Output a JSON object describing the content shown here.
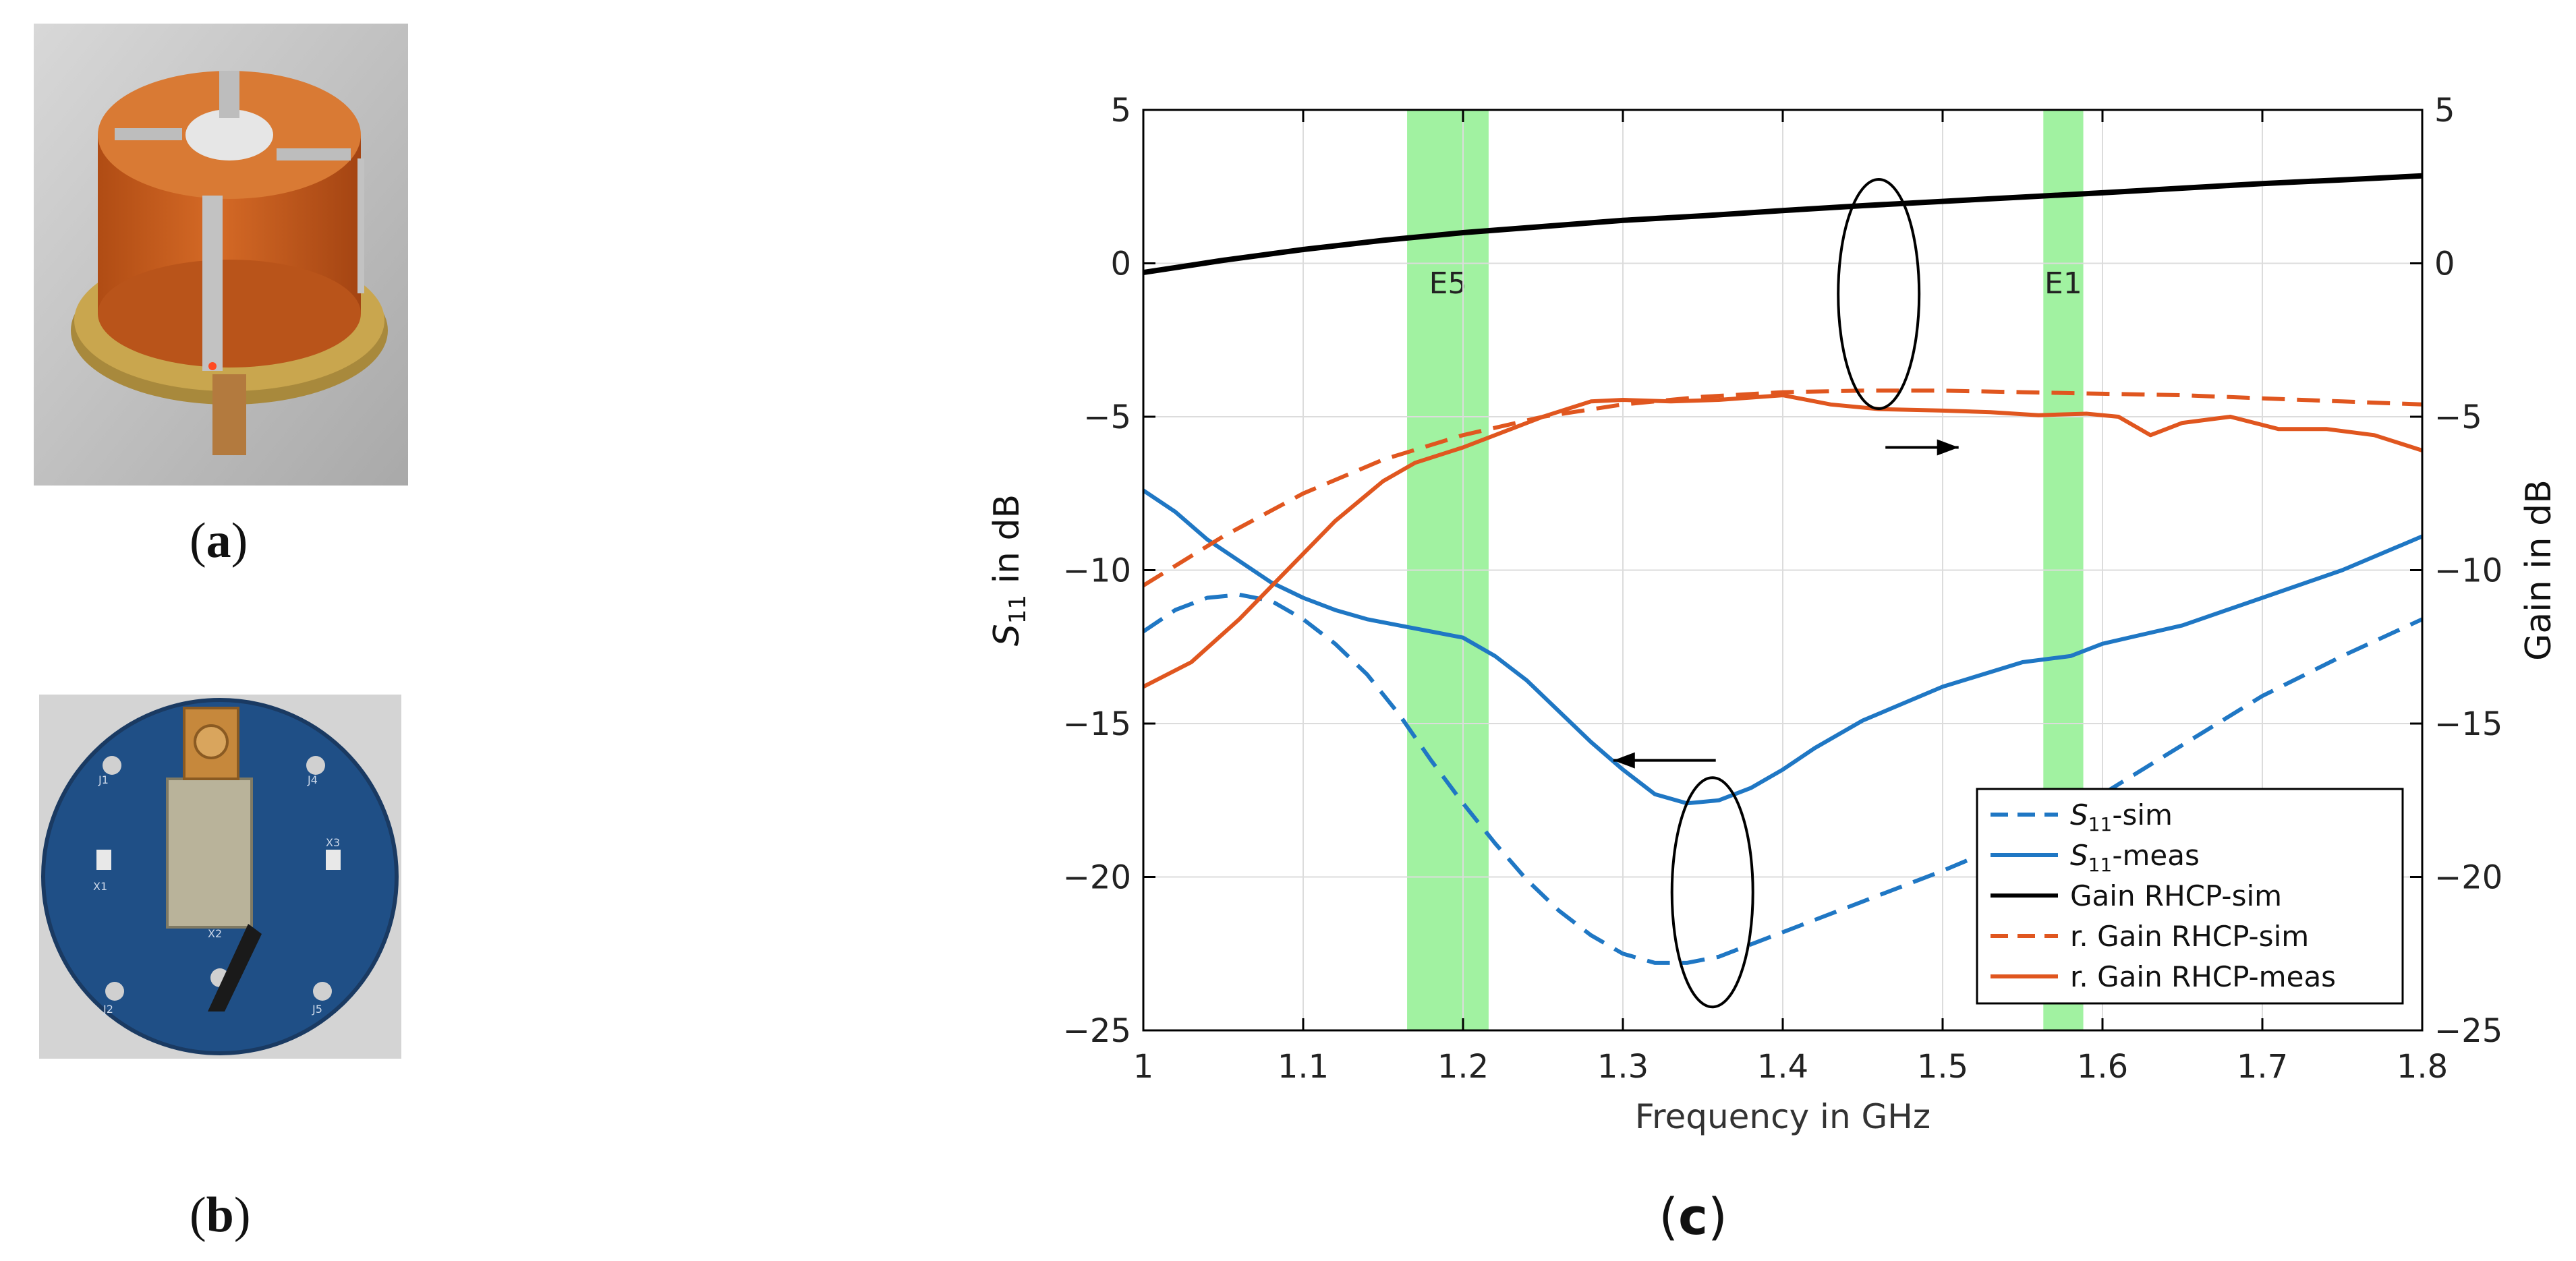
{
  "panels": {
    "a": {
      "caption_letter": "a",
      "description": "antenna-photo"
    },
    "b": {
      "caption_letter": "b",
      "description": "feed-network-pcb-photo"
    },
    "c": {
      "caption_letter": "c"
    }
  },
  "pcb_labels": {
    "j1": "J1",
    "j2": "J2",
    "j4": "J4",
    "j5": "J5",
    "x1": "X1",
    "x2": "X2",
    "x3": "X3"
  },
  "colors": {
    "blue": "#1f77c4",
    "orange": "#e0561f",
    "black": "#000000",
    "band": "#90f090",
    "copper": "#c8601e",
    "pcb": "#1f4f86"
  },
  "chart_data": {
    "type": "line",
    "xlabel": "Frequency in GHz",
    "ylabel_left": "S11 in dB",
    "ylabel_left_main": "S",
    "ylabel_left_sub": "11",
    "ylabel_left_rest": " in dB",
    "ylabel_right": "Gain in dB",
    "xlim": [
      1.0,
      1.8
    ],
    "ylim": [
      -25,
      5
    ],
    "x_ticks": [
      "1",
      "1.1",
      "1.2",
      "1.3",
      "1.4",
      "1.5",
      "1.6",
      "1.7",
      "1.8"
    ],
    "y_ticks_left": [
      "5",
      "0",
      "−5",
      "−10",
      "−15",
      "−20",
      "−25"
    ],
    "y_ticks_right": [
      "5",
      "0",
      "−5",
      "−10",
      "−15",
      "−20",
      "−25"
    ],
    "grid": true,
    "bands": [
      {
        "label": "E5",
        "from": 1.165,
        "to": 1.216
      },
      {
        "label": "E1",
        "from": 1.563,
        "to": 1.588
      }
    ],
    "series": [
      {
        "name": "S11-sim",
        "name_main": "S",
        "name_sub": "11",
        "name_rest": "-sim",
        "color": "blue",
        "dash": true,
        "x": [
          1.0,
          1.02,
          1.04,
          1.06,
          1.08,
          1.1,
          1.12,
          1.14,
          1.16,
          1.18,
          1.2,
          1.22,
          1.24,
          1.26,
          1.28,
          1.3,
          1.32,
          1.34,
          1.36,
          1.38,
          1.4,
          1.45,
          1.5,
          1.55,
          1.6,
          1.65,
          1.7,
          1.75,
          1.8
        ],
        "y": [
          -12.0,
          -11.3,
          -10.9,
          -10.8,
          -11.0,
          -11.6,
          -12.4,
          -13.4,
          -14.7,
          -16.2,
          -17.6,
          -18.9,
          -20.1,
          -21.1,
          -21.9,
          -22.5,
          -22.8,
          -22.8,
          -22.6,
          -22.2,
          -21.8,
          -20.8,
          -19.8,
          -18.7,
          -17.3,
          -15.7,
          -14.1,
          -12.8,
          -11.6
        ]
      },
      {
        "name": "S11-meas",
        "name_main": "S",
        "name_sub": "11",
        "name_rest": "-meas",
        "color": "blue",
        "dash": false,
        "x": [
          1.0,
          1.02,
          1.04,
          1.06,
          1.08,
          1.1,
          1.12,
          1.14,
          1.16,
          1.18,
          1.2,
          1.22,
          1.24,
          1.26,
          1.28,
          1.3,
          1.32,
          1.34,
          1.36,
          1.38,
          1.4,
          1.42,
          1.45,
          1.5,
          1.55,
          1.58,
          1.6,
          1.65,
          1.7,
          1.75,
          1.8
        ],
        "y": [
          -7.4,
          -8.1,
          -9.0,
          -9.7,
          -10.4,
          -10.9,
          -11.3,
          -11.6,
          -11.8,
          -12.0,
          -12.2,
          -12.8,
          -13.6,
          -14.6,
          -15.6,
          -16.5,
          -17.3,
          -17.6,
          -17.5,
          -17.1,
          -16.5,
          -15.8,
          -14.9,
          -13.8,
          -13.0,
          -12.8,
          -12.4,
          -11.8,
          -10.9,
          -10.0,
          -8.9
        ]
      },
      {
        "name": "Gain RHCP-sim",
        "name_main": "Gain RHCP-sim",
        "name_sub": "",
        "name_rest": "",
        "color": "black",
        "dash": false,
        "x": [
          1.0,
          1.05,
          1.1,
          1.15,
          1.2,
          1.25,
          1.3,
          1.35,
          1.4,
          1.45,
          1.5,
          1.55,
          1.6,
          1.65,
          1.7,
          1.75,
          1.8
        ],
        "y": [
          -0.3,
          0.1,
          0.45,
          0.75,
          1.0,
          1.2,
          1.4,
          1.55,
          1.72,
          1.88,
          2.02,
          2.16,
          2.3,
          2.45,
          2.6,
          2.72,
          2.85
        ]
      },
      {
        "name": "r. Gain RHCP-sim",
        "name_main": "r. Gain RHCP-sim",
        "name_sub": "",
        "name_rest": "",
        "color": "orange",
        "dash": true,
        "x": [
          1.0,
          1.05,
          1.1,
          1.15,
          1.2,
          1.25,
          1.3,
          1.35,
          1.4,
          1.45,
          1.5,
          1.55,
          1.6,
          1.65,
          1.7,
          1.75,
          1.8
        ],
        "y": [
          -10.5,
          -8.9,
          -7.5,
          -6.4,
          -5.6,
          -5.0,
          -4.6,
          -4.35,
          -4.2,
          -4.15,
          -4.15,
          -4.2,
          -4.25,
          -4.3,
          -4.4,
          -4.5,
          -4.6
        ]
      },
      {
        "name": "r. Gain RHCP-meas",
        "name_main": "r. Gain RHCP-meas",
        "name_sub": "",
        "name_rest": "",
        "color": "orange",
        "dash": false,
        "x": [
          1.0,
          1.03,
          1.06,
          1.09,
          1.12,
          1.15,
          1.17,
          1.2,
          1.22,
          1.25,
          1.28,
          1.3,
          1.33,
          1.36,
          1.4,
          1.43,
          1.46,
          1.5,
          1.53,
          1.56,
          1.59,
          1.61,
          1.63,
          1.65,
          1.68,
          1.71,
          1.74,
          1.77,
          1.8
        ],
        "y": [
          -13.8,
          -13.0,
          -11.6,
          -10.0,
          -8.4,
          -7.1,
          -6.5,
          -6.0,
          -5.6,
          -5.0,
          -4.5,
          -4.45,
          -4.5,
          -4.45,
          -4.3,
          -4.6,
          -4.75,
          -4.8,
          -4.85,
          -4.95,
          -4.9,
          -5.0,
          -5.6,
          -5.2,
          -5.0,
          -5.4,
          -5.4,
          -5.6,
          -6.1
        ]
      }
    ],
    "annotations": [
      {
        "name": "left-pointer",
        "target_axis": "left"
      },
      {
        "name": "right-pointer",
        "target_axis": "right"
      }
    ]
  }
}
